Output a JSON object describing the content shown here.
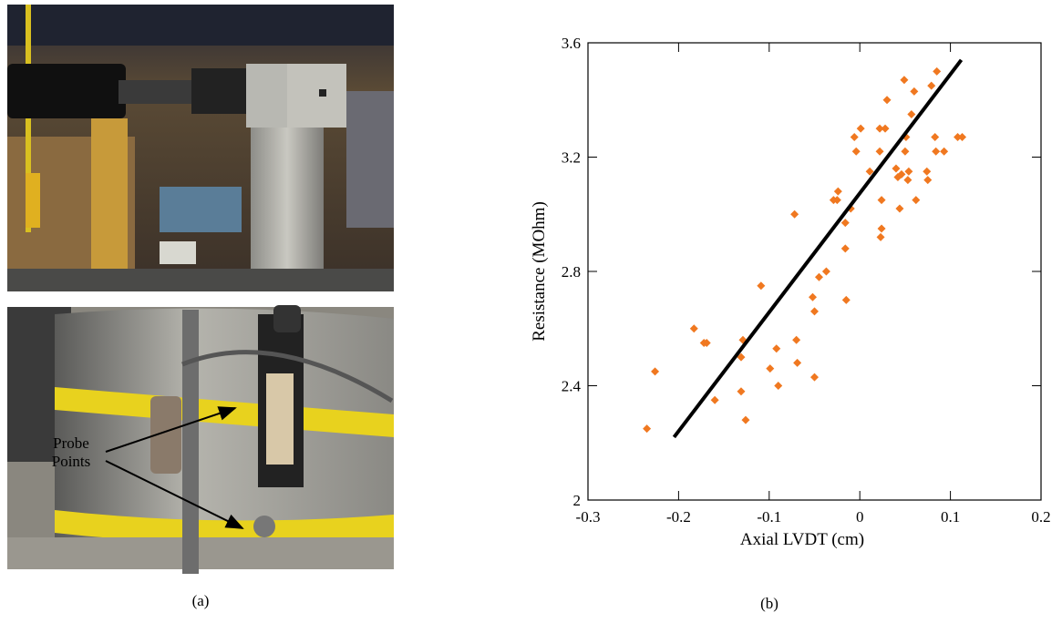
{
  "panel_a": {
    "annotation": [
      "Probe",
      "Points"
    ],
    "caption": "(a)"
  },
  "chart_data": {
    "type": "scatter",
    "caption": "(b)",
    "x_label": "Axial LVDT  (cm)",
    "y_label": "Resistance  (MOhm)",
    "color": "#f07820",
    "marker": "diamond",
    "x": [
      -0.235,
      -0.226,
      -0.183,
      -0.172,
      -0.169,
      -0.16,
      -0.129,
      -0.131,
      -0.131,
      -0.126,
      -0.109,
      -0.099,
      -0.092,
      -0.09,
      -0.072,
      -0.07,
      -0.069,
      -0.052,
      -0.05,
      -0.05,
      -0.045,
      -0.037,
      -0.029,
      -0.025,
      -0.024,
      -0.016,
      -0.016,
      -0.015,
      -0.01,
      -0.006,
      -0.004,
      0.001,
      0.011,
      0.022,
      0.022,
      0.023,
      0.024,
      0.024,
      0.028,
      0.03,
      0.04,
      0.042,
      0.044,
      0.046,
      0.049,
      0.05,
      0.051,
      0.053,
      0.054,
      0.057,
      0.06,
      0.062,
      0.074,
      0.075,
      0.079,
      0.083,
      0.084,
      0.085,
      0.093,
      0.108,
      0.113
    ],
    "values": [
      2.25,
      2.45,
      2.6,
      2.55,
      2.55,
      2.35,
      2.56,
      2.5,
      2.38,
      2.28,
      2.75,
      2.46,
      2.53,
      2.4,
      3.0,
      2.56,
      2.48,
      2.71,
      2.66,
      2.43,
      2.78,
      2.8,
      3.05,
      3.05,
      3.08,
      2.88,
      2.97,
      2.7,
      3.02,
      3.27,
      3.22,
      3.3,
      3.15,
      3.22,
      3.3,
      2.92,
      2.95,
      3.05,
      3.3,
      3.4,
      3.16,
      3.13,
      3.02,
      3.14,
      3.47,
      3.22,
      3.27,
      3.12,
      3.15,
      3.35,
      3.43,
      3.05,
      3.15,
      3.12,
      3.45,
      3.27,
      3.22,
      3.5,
      3.22,
      3.27,
      3.27
    ],
    "fit_line": {
      "x": [
        -0.205,
        0.112
      ],
      "values": [
        2.22,
        3.54
      ],
      "color": "#000000"
    },
    "xlim": [
      -0.3,
      0.2
    ],
    "xticks": [
      -0.3,
      -0.2,
      -0.1,
      0,
      0.1,
      0.2
    ],
    "ylim": [
      2,
      3.6
    ],
    "yticks": [
      2,
      2.4,
      2.8,
      3.2,
      3.6
    ]
  }
}
